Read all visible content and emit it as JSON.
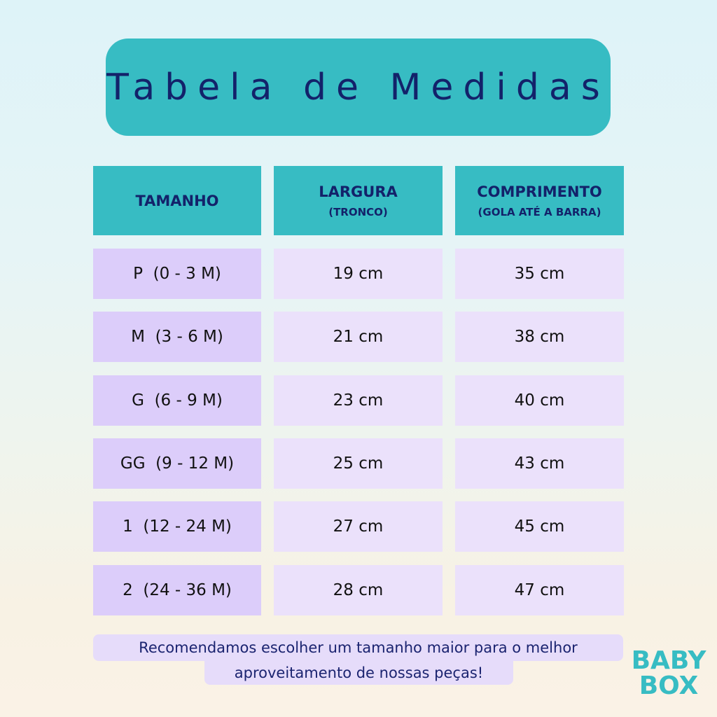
{
  "title": "Tabela de Medidas",
  "headers": [
    {
      "main": "TAMANHO",
      "sub": ""
    },
    {
      "main": "LARGURA",
      "sub": "(TRONCO)"
    },
    {
      "main": "COMPRIMENTO",
      "sub": "(GOLA ATÉ A BARRA)"
    }
  ],
  "rows": [
    [
      "P  (0 - 3 M)",
      "19 cm",
      "35 cm"
    ],
    [
      "M  (3 - 6 M)",
      "21 cm",
      "38 cm"
    ],
    [
      "G  (6 - 9 M)",
      "23 cm",
      "40 cm"
    ],
    [
      "GG  (9 - 12 M)",
      "25 cm",
      "43 cm"
    ],
    [
      "1  (12 - 24 M)",
      "27 cm",
      "45 cm"
    ],
    [
      "2  (24 - 36 M)",
      "28 cm",
      "47 cm"
    ]
  ],
  "note": {
    "line1": "Recomendamos escolher um tamanho maior para o melhor",
    "line2": "aproveitamento de nossas peças!"
  },
  "logo": {
    "line1": "BABY",
    "line2": "BOX"
  },
  "colors": {
    "header": "#37bcc3",
    "text": "#13226a",
    "size_cell": "#dccdfa",
    "value_cell": "#ebe1fb"
  }
}
